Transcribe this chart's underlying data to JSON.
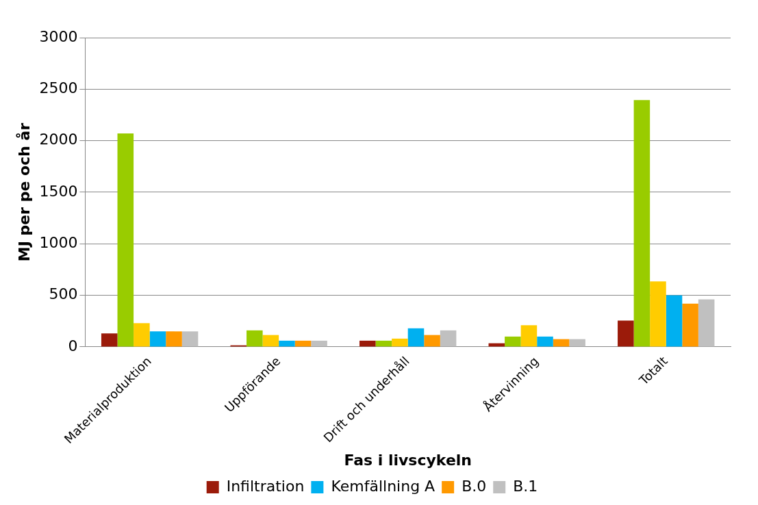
{
  "chart_data": {
    "type": "bar",
    "xlabel": "Fas i livscykeln",
    "ylabel": "MJ per pe och år",
    "categories": [
      "Materialproduktion",
      "Uppförande",
      "Drift och underhåll",
      "Återvinning",
      "Totalt"
    ],
    "series": [
      {
        "name": "Infiltration",
        "color": "#9b1b0a",
        "values": [
          130,
          15,
          60,
          35,
          255
        ]
      },
      {
        "color": "#99cc00",
        "values": [
          2070,
          160,
          60,
          100,
          2395
        ]
      },
      {
        "color": "#ffcc00",
        "values": [
          230,
          115,
          80,
          210,
          635
        ]
      },
      {
        "name": "Kemfällning A",
        "color": "#00b0f0",
        "values": [
          150,
          60,
          180,
          100,
          500
        ]
      },
      {
        "name": "B.0",
        "color": "#ff9900",
        "values": [
          150,
          60,
          115,
          75,
          420
        ]
      },
      {
        "name": "B.1",
        "color": "#c0c0c0",
        "values": [
          150,
          60,
          160,
          75,
          460
        ]
      }
    ],
    "ylim": [
      0,
      3000
    ],
    "yticks": [
      0,
      500,
      1000,
      1500,
      2000,
      2500,
      3000
    ],
    "grid": "y",
    "legend": "bottom"
  }
}
